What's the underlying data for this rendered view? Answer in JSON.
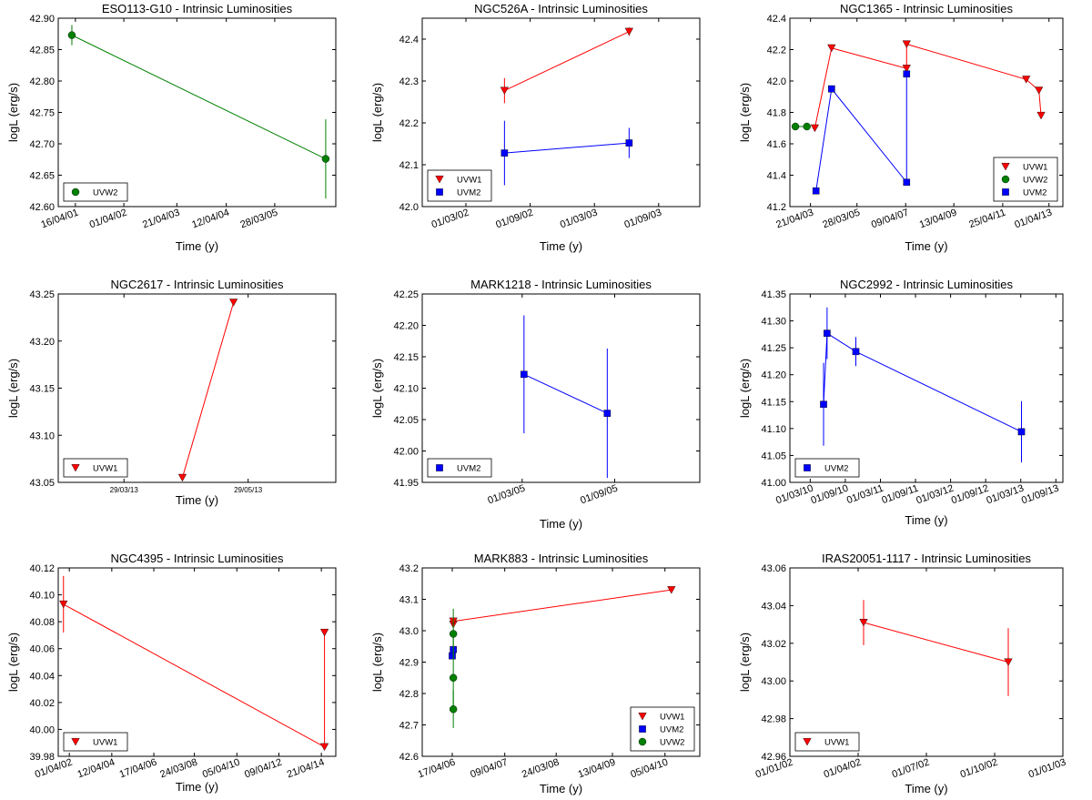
{
  "colors": {
    "UVW1": "#ff0000",
    "UVW2": "#008000",
    "UVM2": "#0000ff"
  },
  "ylabel": "logL (erg/s)",
  "xlabel": "Time (y)",
  "chart_data": [
    {
      "type": "line",
      "title": "ESO113-G10 - Intrinsic Luminosities",
      "xlabel": "Time (y)",
      "ylabel": "logL (erg/s)",
      "xlim": [
        2000.95,
        2006.45
      ],
      "xticks": [
        {
          "v": 2001.29,
          "label": "16/04/01"
        },
        {
          "v": 2002.25,
          "label": "01/04/02"
        },
        {
          "v": 2003.3,
          "label": "21/04/03"
        },
        {
          "v": 2004.28,
          "label": "12/04/04"
        },
        {
          "v": 2005.24,
          "label": "28/03/05"
        }
      ],
      "ylim": [
        42.6,
        42.9
      ],
      "yticks": [
        {
          "v": 42.6,
          "label": "42.60"
        },
        {
          "v": 42.65,
          "label": "42.65"
        },
        {
          "v": 42.7,
          "label": "42.70"
        },
        {
          "v": 42.75,
          "label": "42.75"
        },
        {
          "v": 42.8,
          "label": "42.80"
        },
        {
          "v": 42.85,
          "label": "42.85"
        },
        {
          "v": 42.9,
          "label": "42.90"
        }
      ],
      "series": [
        {
          "name": "UVW2",
          "marker": "circle",
          "points": [
            {
              "x": 2001.22,
              "y": 42.873,
              "err": 0.016
            },
            {
              "x": 2006.25,
              "y": 42.676,
              "err": 0.063
            }
          ]
        }
      ],
      "legend": "lower-left"
    },
    {
      "type": "line",
      "title": "NGC526A - Intrinsic Luminosities",
      "xlabel": "Time (y)",
      "ylabel": "logL (erg/s)",
      "xlim": [
        2001.83,
        2003.99
      ],
      "xticks": [
        {
          "v": 2002.17,
          "label": "01/03/02"
        },
        {
          "v": 2002.67,
          "label": "01/09/02"
        },
        {
          "v": 2003.17,
          "label": "01/03/03"
        },
        {
          "v": 2003.67,
          "label": "01/09/03"
        }
      ],
      "ylim": [
        42.0,
        42.45
      ],
      "yticks": [
        {
          "v": 42.0,
          "label": "42.0"
        },
        {
          "v": 42.1,
          "label": "42.1"
        },
        {
          "v": 42.2,
          "label": "42.2"
        },
        {
          "v": 42.3,
          "label": "42.3"
        },
        {
          "v": 42.4,
          "label": "42.4"
        }
      ],
      "series": [
        {
          "name": "UVW1",
          "marker": "triangle",
          "points": [
            {
              "x": 2002.47,
              "y": 42.277,
              "err": 0.03
            },
            {
              "x": 2003.44,
              "y": 42.418,
              "err": 0.01
            }
          ]
        },
        {
          "name": "UVM2",
          "marker": "square",
          "points": [
            {
              "x": 2002.47,
              "y": 42.128,
              "err": 0.077
            },
            {
              "x": 2003.44,
              "y": 42.152,
              "err": 0.036
            }
          ]
        }
      ],
      "legend": "lower-left"
    },
    {
      "type": "line",
      "title": "NGC1365 - Intrinsic Luminosities",
      "xlabel": "Time (y)",
      "ylabel": "logL (erg/s)",
      "xlim": [
        2002.44,
        2013.83
      ],
      "xticks": [
        {
          "v": 2003.3,
          "label": "21/04/03"
        },
        {
          "v": 2005.24,
          "label": "28/03/05"
        },
        {
          "v": 2007.27,
          "label": "09/04/07"
        },
        {
          "v": 2009.28,
          "label": "13/04/09"
        },
        {
          "v": 2011.32,
          "label": "25/04/11"
        },
        {
          "v": 2013.25,
          "label": "01/04/13"
        }
      ],
      "ylim": [
        41.2,
        42.4
      ],
      "yticks": [
        {
          "v": 41.2,
          "label": "41.2"
        },
        {
          "v": 41.4,
          "label": "41.4"
        },
        {
          "v": 41.6,
          "label": "41.6"
        },
        {
          "v": 41.8,
          "label": "41.8"
        },
        {
          "v": 42.0,
          "label": "42.0"
        },
        {
          "v": 42.2,
          "label": "42.2"
        },
        {
          "v": 42.4,
          "label": "42.4"
        }
      ],
      "series": [
        {
          "name": "UVW1",
          "marker": "triangle",
          "points": [
            {
              "x": 2003.48,
              "y": 41.7
            },
            {
              "x": 2004.18,
              "y": 42.21
            },
            {
              "x": 2007.31,
              "y": 42.08
            },
            {
              "x": 2007.31,
              "y": 42.235
            },
            {
              "x": 2012.3,
              "y": 42.01
            },
            {
              "x": 2012.83,
              "y": 41.94
            },
            {
              "x": 2012.92,
              "y": 41.78
            }
          ]
        },
        {
          "name": "UVW2",
          "marker": "circle",
          "points": [
            {
              "x": 2002.67,
              "y": 41.71
            },
            {
              "x": 2003.15,
              "y": 41.71
            }
          ]
        },
        {
          "name": "UVM2",
          "marker": "square",
          "points": [
            {
              "x": 2003.53,
              "y": 41.3
            },
            {
              "x": 2004.18,
              "y": 41.95
            },
            {
              "x": 2007.31,
              "y": 41.355
            },
            {
              "x": 2007.31,
              "y": 42.045
            }
          ]
        }
      ],
      "legend": "lower-right"
    },
    {
      "type": "line",
      "title": "NGC2617 - Intrinsic Luminosities",
      "xlabel": "Time (y)",
      "ylabel": "logL (erg/s)",
      "xlim": [
        2013.15,
        2013.53
      ],
      "xticks": [
        {
          "v": 2013.24,
          "label": "29/03/13"
        },
        {
          "v": 2013.41,
          "label": "29/05/13"
        }
      ],
      "ylim": [
        43.05,
        43.25
      ],
      "yticks": [
        {
          "v": 43.05,
          "label": "43.05"
        },
        {
          "v": 43.1,
          "label": "43.10"
        },
        {
          "v": 43.15,
          "label": "43.15"
        },
        {
          "v": 43.2,
          "label": "43.20"
        },
        {
          "v": 43.25,
          "label": "43.25"
        }
      ],
      "series": [
        {
          "name": "UVW1",
          "marker": "triangle",
          "points": [
            {
              "x": 2013.32,
              "y": 43.055
            },
            {
              "x": 2013.39,
              "y": 43.241
            }
          ]
        }
      ],
      "legend": "lower-left"
    },
    {
      "type": "line",
      "title": "MARK1218 - Intrinsic Luminosities",
      "xlabel": "Time (y)",
      "ylabel": "logL (erg/s)",
      "xlim": [
        2004.63,
        2006.13
      ],
      "xticks": [
        {
          "v": 2005.17,
          "label": "01/03/05"
        },
        {
          "v": 2005.67,
          "label": "01/09/05"
        }
      ],
      "ylim": [
        41.95,
        42.25
      ],
      "yticks": [
        {
          "v": 41.95,
          "label": "41.95"
        },
        {
          "v": 42.0,
          "label": "42.00"
        },
        {
          "v": 42.05,
          "label": "42.05"
        },
        {
          "v": 42.1,
          "label": "42.10"
        },
        {
          "v": 42.15,
          "label": "42.15"
        },
        {
          "v": 42.2,
          "label": "42.20"
        },
        {
          "v": 42.25,
          "label": "42.25"
        }
      ],
      "series": [
        {
          "name": "UVM2",
          "marker": "square",
          "points": [
            {
              "x": 2005.18,
              "y": 42.122,
              "err": 0.094
            },
            {
              "x": 2005.63,
              "y": 42.06,
              "err": 0.103
            }
          ]
        }
      ],
      "legend": "lower-left"
    },
    {
      "type": "line",
      "title": "NGC2992 - Intrinsic Luminosities",
      "xlabel": "Time (y)",
      "ylabel": "logL (erg/s)",
      "xlim": [
        2009.88,
        2013.77
      ],
      "xticks": [
        {
          "v": 2010.17,
          "label": "01/03/10"
        },
        {
          "v": 2010.67,
          "label": "01/09/10"
        },
        {
          "v": 2011.17,
          "label": "01/03/11"
        },
        {
          "v": 2011.67,
          "label": "01/09/11"
        },
        {
          "v": 2012.17,
          "label": "01/03/12"
        },
        {
          "v": 2012.67,
          "label": "01/09/12"
        },
        {
          "v": 2013.17,
          "label": "01/03/13"
        },
        {
          "v": 2013.67,
          "label": "01/09/13"
        }
      ],
      "ylim": [
        41.0,
        41.35
      ],
      "yticks": [
        {
          "v": 41.0,
          "label": "41.00"
        },
        {
          "v": 41.05,
          "label": "41.05"
        },
        {
          "v": 41.1,
          "label": "41.10"
        },
        {
          "v": 41.15,
          "label": "41.15"
        },
        {
          "v": 41.2,
          "label": "41.20"
        },
        {
          "v": 41.25,
          "label": "41.25"
        },
        {
          "v": 41.3,
          "label": "41.30"
        },
        {
          "v": 41.35,
          "label": "41.35"
        }
      ],
      "series": [
        {
          "name": "UVM2",
          "marker": "square",
          "points": [
            {
              "x": 2010.36,
              "y": 41.145,
              "err": 0.077
            },
            {
              "x": 2010.41,
              "y": 41.277,
              "err": 0.048
            },
            {
              "x": 2010.82,
              "y": 41.243,
              "err": 0.027
            },
            {
              "x": 2013.18,
              "y": 41.094,
              "err": 0.057
            }
          ]
        }
      ],
      "legend": "lower-left"
    },
    {
      "type": "line",
      "title": "NGC4395 - Intrinsic Luminosities",
      "xlabel": "Time (y)",
      "ylabel": "logL (erg/s)",
      "xlim": [
        2001.72,
        2014.99
      ],
      "xticks": [
        {
          "v": 2002.25,
          "label": "01/04/02"
        },
        {
          "v": 2004.28,
          "label": "12/04/04"
        },
        {
          "v": 2006.29,
          "label": "17/04/06"
        },
        {
          "v": 2008.23,
          "label": "24/03/08"
        },
        {
          "v": 2010.26,
          "label": "05/04/10"
        },
        {
          "v": 2012.27,
          "label": "09/04/12"
        },
        {
          "v": 2014.3,
          "label": "21/04/14"
        }
      ],
      "ylim": [
        39.98,
        40.12
      ],
      "yticks": [
        {
          "v": 39.98,
          "label": "39.98"
        },
        {
          "v": 40.0,
          "label": "40.00"
        },
        {
          "v": 40.02,
          "label": "40.02"
        },
        {
          "v": 40.04,
          "label": "40.04"
        },
        {
          "v": 40.06,
          "label": "40.06"
        },
        {
          "v": 40.08,
          "label": "40.08"
        },
        {
          "v": 40.1,
          "label": "40.10"
        },
        {
          "v": 40.12,
          "label": "40.12"
        }
      ],
      "series": [
        {
          "name": "UVW1",
          "marker": "triangle",
          "points": [
            {
              "x": 2001.97,
              "y": 40.093,
              "err": 0.021
            },
            {
              "x": 2014.45,
              "y": 39.987
            },
            {
              "x": 2014.45,
              "y": 40.072
            }
          ]
        }
      ],
      "legend": "lower-left"
    },
    {
      "type": "line",
      "title": "MARK883 - Intrinsic Luminosities",
      "xlabel": "Time (y)",
      "ylabel": "logL (erg/s)",
      "xlim": [
        2005.73,
        2010.91
      ],
      "xticks": [
        {
          "v": 2006.29,
          "label": "17/04/06"
        },
        {
          "v": 2007.27,
          "label": "09/04/07"
        },
        {
          "v": 2008.23,
          "label": "24/03/08"
        },
        {
          "v": 2009.28,
          "label": "13/04/09"
        },
        {
          "v": 2010.26,
          "label": "05/04/10"
        }
      ],
      "ylim": [
        42.6,
        43.2
      ],
      "yticks": [
        {
          "v": 42.6,
          "label": "42.6"
        },
        {
          "v": 42.7,
          "label": "42.7"
        },
        {
          "v": 42.8,
          "label": "42.8"
        },
        {
          "v": 42.9,
          "label": "42.9"
        },
        {
          "v": 43.0,
          "label": "43.0"
        },
        {
          "v": 43.1,
          "label": "43.1"
        },
        {
          "v": 43.2,
          "label": "43.2"
        }
      ],
      "series": [
        {
          "name": "UVW1",
          "marker": "triangle",
          "points": [
            {
              "x": 2006.31,
              "y": 43.02
            },
            {
              "x": 2006.31,
              "y": 43.03
            },
            {
              "x": 2010.38,
              "y": 43.13
            }
          ]
        },
        {
          "name": "UVM2",
          "marker": "square",
          "points": [
            {
              "x": 2006.29,
              "y": 42.92
            },
            {
              "x": 2006.31,
              "y": 42.94
            }
          ]
        },
        {
          "name": "UVW2",
          "marker": "circle",
          "points": [
            {
              "x": 2006.31,
              "y": 42.99,
              "err": 0.08
            },
            {
              "x": 2006.31,
              "y": 42.85
            },
            {
              "x": 2006.31,
              "y": 42.75,
              "err": 0.06
            }
          ]
        }
      ],
      "legend": "lower-right"
    },
    {
      "type": "line",
      "title": "IRAS20051-1117 - Intrinsic Luminosities",
      "xlabel": "Time (y)",
      "ylabel": "logL (erg/s)",
      "xlim": [
        2002.0,
        2003.0
      ],
      "xticks": [
        {
          "v": 2002.0,
          "label": "01/01/02"
        },
        {
          "v": 2002.25,
          "label": "01/04/02"
        },
        {
          "v": 2002.5,
          "label": "01/07/02"
        },
        {
          "v": 2002.75,
          "label": "01/10/02"
        },
        {
          "v": 2003.0,
          "label": "01/01/03"
        }
      ],
      "ylim": [
        42.96,
        43.06
      ],
      "yticks": [
        {
          "v": 42.96,
          "label": "42.96"
        },
        {
          "v": 42.98,
          "label": "42.98"
        },
        {
          "v": 43.0,
          "label": "43.00"
        },
        {
          "v": 43.02,
          "label": "43.02"
        },
        {
          "v": 43.04,
          "label": "43.04"
        },
        {
          "v": 43.06,
          "label": "43.06"
        }
      ],
      "series": [
        {
          "name": "UVW1",
          "marker": "triangle",
          "points": [
            {
              "x": 2002.27,
              "y": 43.031,
              "err": 0.012
            },
            {
              "x": 2002.8,
              "y": 43.01,
              "err": 0.018
            }
          ]
        }
      ],
      "legend": "lower-left"
    }
  ]
}
